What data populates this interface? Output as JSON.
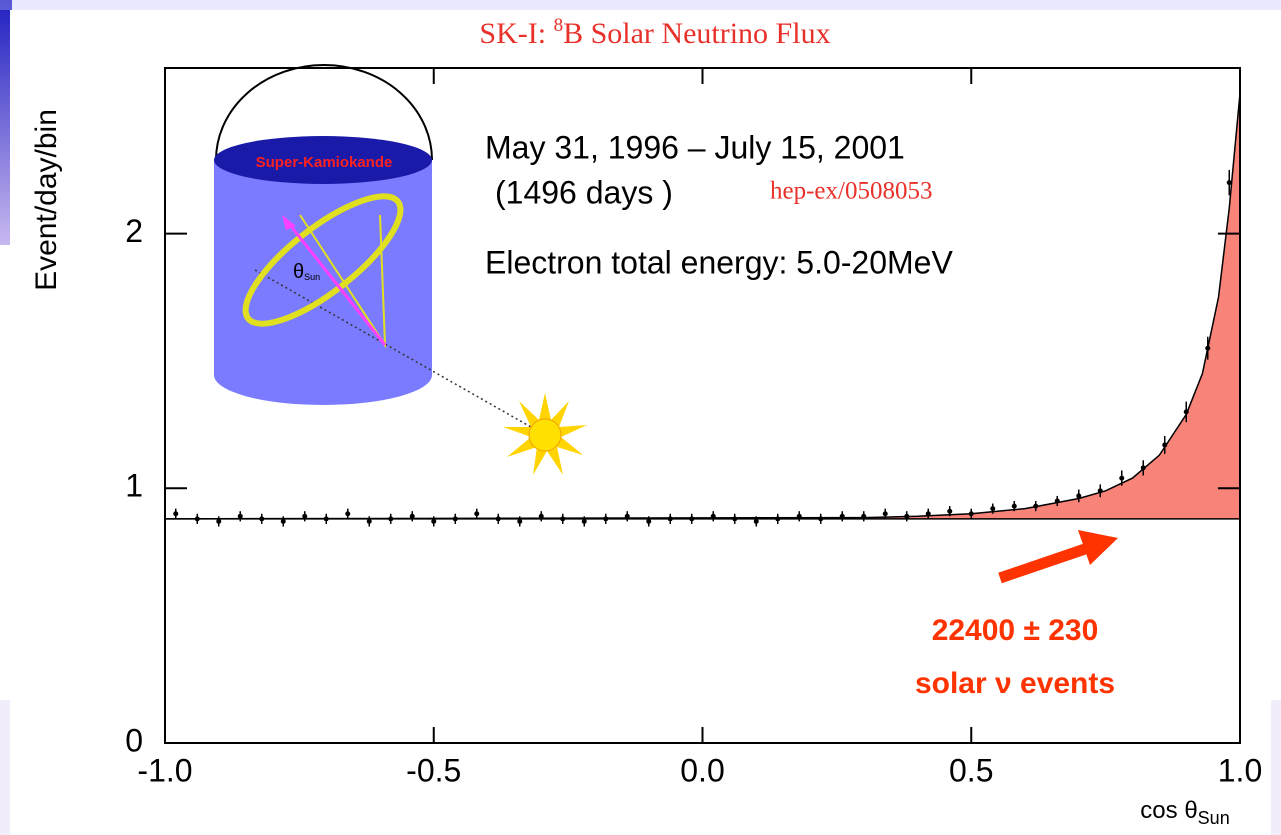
{
  "chart_data": {
    "type": "scatter",
    "title_prefix": "SK-I: ",
    "title_sup": "8",
    "title_rest": "B Solar Neutrino Flux",
    "y_label": "Event/day/bin",
    "x_label": "cos θ",
    "x_label_sub": "Sun",
    "xlim": [
      -1.0,
      1.0
    ],
    "ylim": [
      0,
      2.65
    ],
    "xticks": [
      {
        "value": -1.0,
        "label": "-1.0"
      },
      -0.5,
      {
        "value": 0.0,
        "label": "0.0"
      },
      0.5,
      {
        "value": 1.0,
        "label": "1.0"
      }
    ],
    "yticks": [
      0,
      1,
      2
    ],
    "color": "#000000",
    "signal_color": "#f88379",
    "x": [
      -0.98,
      -0.94,
      -0.9,
      -0.86,
      -0.82,
      -0.78,
      -0.74,
      -0.7,
      -0.66,
      -0.62,
      -0.58,
      -0.54,
      -0.5,
      -0.46,
      -0.42,
      -0.38,
      -0.34,
      -0.3,
      -0.26,
      -0.22,
      -0.18,
      -0.14,
      -0.1,
      -0.06,
      -0.02,
      0.02,
      0.06,
      0.1,
      0.14,
      0.18,
      0.22,
      0.26,
      0.3,
      0.34,
      0.38,
      0.42,
      0.46,
      0.5,
      0.54,
      0.58,
      0.62,
      0.66,
      0.7,
      0.74,
      0.78,
      0.82,
      0.86,
      0.9,
      0.94,
      0.98
    ],
    "values": [
      0.9,
      0.88,
      0.87,
      0.89,
      0.88,
      0.87,
      0.89,
      0.88,
      0.9,
      0.87,
      0.88,
      0.89,
      0.87,
      0.88,
      0.9,
      0.88,
      0.87,
      0.89,
      0.88,
      0.87,
      0.88,
      0.89,
      0.87,
      0.88,
      0.88,
      0.89,
      0.88,
      0.87,
      0.88,
      0.89,
      0.88,
      0.89,
      0.89,
      0.9,
      0.89,
      0.9,
      0.91,
      0.9,
      0.92,
      0.93,
      0.93,
      0.95,
      0.97,
      0.99,
      1.04,
      1.08,
      1.17,
      1.3,
      1.55,
      2.2
    ],
    "errors": [
      0.02,
      0.02,
      0.02,
      0.02,
      0.02,
      0.02,
      0.02,
      0.02,
      0.02,
      0.02,
      0.02,
      0.02,
      0.02,
      0.02,
      0.02,
      0.02,
      0.02,
      0.02,
      0.02,
      0.02,
      0.02,
      0.02,
      0.02,
      0.02,
      0.02,
      0.02,
      0.02,
      0.02,
      0.02,
      0.02,
      0.02,
      0.02,
      0.02,
      0.02,
      0.02,
      0.02,
      0.02,
      0.02,
      0.02,
      0.02,
      0.02,
      0.02,
      0.025,
      0.025,
      0.03,
      0.03,
      0.035,
      0.04,
      0.045,
      0.05
    ],
    "background": 0.88,
    "fit": {
      "x": [
        -1.0,
        0.3,
        0.4,
        0.5,
        0.6,
        0.7,
        0.75,
        0.8,
        0.85,
        0.9,
        0.93,
        0.96,
        0.98,
        1.0
      ],
      "values": [
        0.88,
        0.885,
        0.89,
        0.9,
        0.92,
        0.96,
        0.99,
        1.04,
        1.13,
        1.29,
        1.45,
        1.75,
        2.1,
        2.55
      ]
    },
    "annotations": {
      "period": "May 31, 1996 – July 15, 2001",
      "days": "(1496 days )",
      "reference": "hep-ex/0508053",
      "energy": "Electron total energy: 5.0-20MeV",
      "events": "22400 ± 230",
      "events_label": "solar ν events",
      "detector": "Super-Kamiokande",
      "angle": "θ",
      "angle_sub": "Sun"
    }
  }
}
